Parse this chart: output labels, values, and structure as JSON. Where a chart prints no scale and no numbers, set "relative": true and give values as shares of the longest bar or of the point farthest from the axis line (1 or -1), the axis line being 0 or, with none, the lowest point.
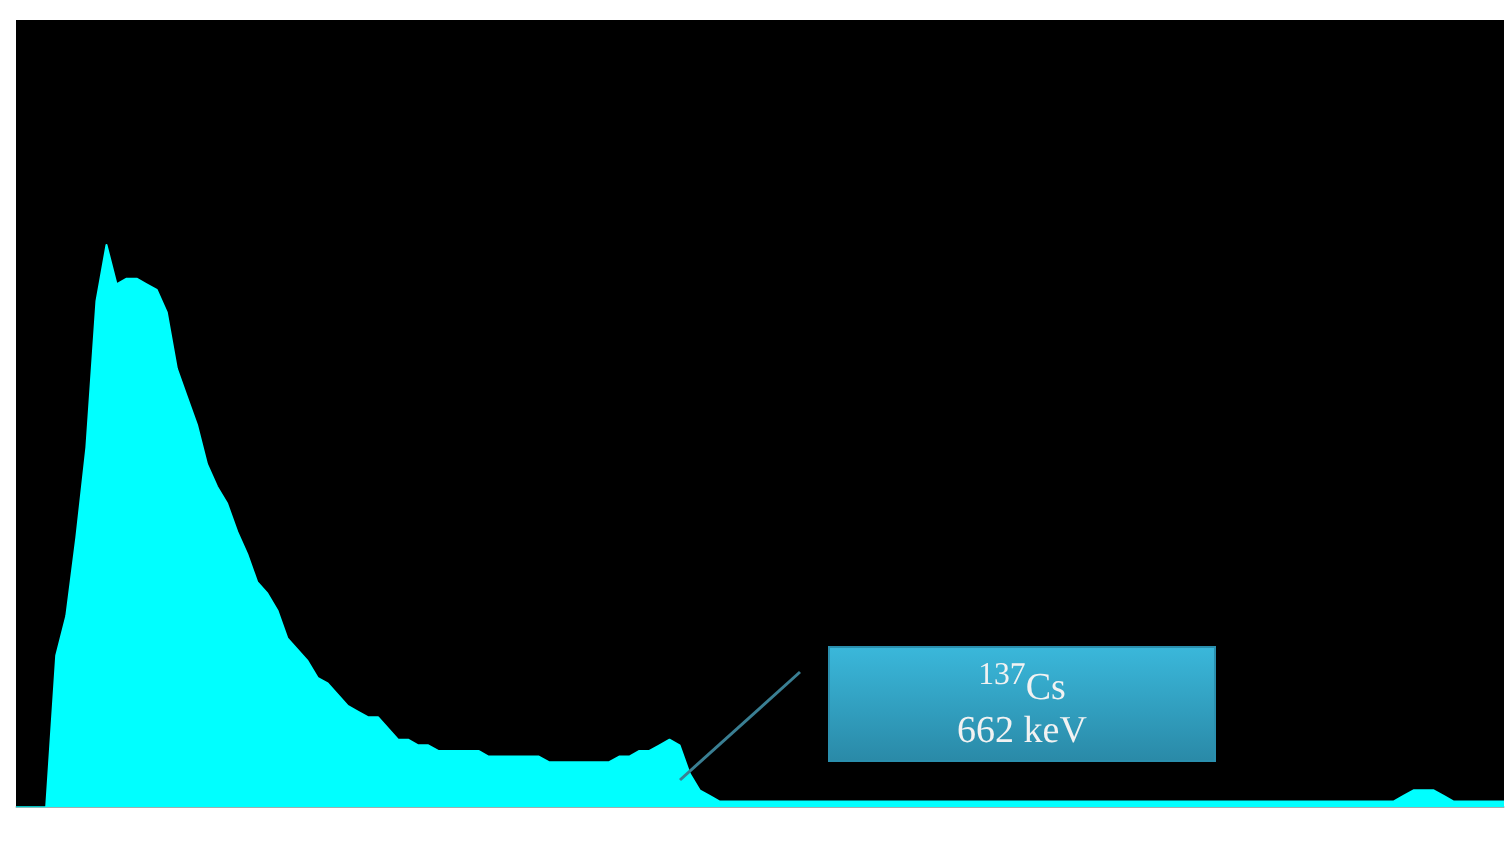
{
  "chart_data": {
    "type": "area",
    "relative": true,
    "color": "#00ffff",
    "categories": [
      null,
      null,
      null,
      null,
      null,
      null,
      null,
      null,
      null,
      null,
      null,
      null,
      null,
      null,
      null,
      null,
      null,
      null,
      null,
      null,
      null,
      null,
      null,
      null,
      null,
      null,
      null,
      null,
      null,
      null,
      null,
      null,
      null,
      null,
      null,
      null,
      null,
      null,
      null,
      null,
      null,
      null,
      null,
      null,
      null,
      null,
      null,
      null,
      null,
      null,
      null,
      null,
      null,
      null,
      null,
      null,
      null,
      null,
      null,
      null,
      null,
      null,
      null,
      null,
      null,
      null,
      null,
      null,
      null,
      null,
      null,
      null,
      null,
      null,
      null,
      null,
      null,
      null,
      null,
      null,
      null,
      null,
      null,
      null,
      null,
      null,
      null,
      null,
      null,
      null,
      null,
      null,
      null,
      null,
      null,
      null,
      null,
      null,
      null,
      null,
      null,
      null,
      null,
      null,
      null,
      null,
      null,
      null,
      null,
      null,
      null,
      null,
      null,
      null,
      null,
      null,
      null,
      null,
      null,
      null,
      null,
      null,
      null,
      null,
      null,
      null,
      null,
      null,
      null,
      null,
      null,
      null,
      null,
      null,
      null,
      null,
      null,
      null,
      null,
      null,
      null,
      null,
      null,
      null,
      null,
      null,
      null,
      null,
      null
    ],
    "values": [
      0,
      0,
      0,
      0,
      0.27,
      0.34,
      0.48,
      0.64,
      0.9,
      1,
      0.93,
      0.94,
      0.94,
      0.93,
      0.92,
      0.88,
      0.78,
      0.73,
      0.68,
      0.61,
      0.57,
      0.54,
      0.49,
      0.45,
      0.4,
      0.38,
      0.35,
      0.3,
      0.28,
      0.26,
      0.23,
      0.22,
      0.2,
      0.18,
      0.17,
      0.16,
      0.16,
      0.14,
      0.12,
      0.12,
      0.11,
      0.11,
      0.1,
      0.1,
      0.1,
      0.1,
      0.1,
      0.09,
      0.09,
      0.09,
      0.09,
      0.09,
      0.09,
      0.08,
      0.08,
      0.08,
      0.08,
      0.08,
      0.08,
      0.08,
      0.09,
      0.09,
      0.1,
      0.1,
      0.11,
      0.12,
      0.11,
      0.06,
      0.03,
      0.02,
      0.01,
      0.01,
      0.01,
      0.01,
      0.01,
      0.01,
      0.01,
      0.01,
      0.01,
      0.01,
      0.01,
      0.01,
      0.01,
      0.01,
      0.01,
      0.01,
      0.01,
      0.01,
      0.01,
      0.01,
      0.01,
      0.01,
      0.01,
      0.01,
      0.01,
      0.01,
      0.01,
      0.01,
      0.01,
      0.01,
      0.01,
      0.01,
      0.01,
      0.01,
      0.01,
      0.01,
      0.01,
      0.01,
      0.01,
      0.01,
      0.01,
      0.01,
      0.01,
      0.01,
      0.01,
      0.01,
      0.01,
      0.01,
      0.01,
      0.01,
      0.01,
      0.01,
      0.01,
      0.01,
      0.01,
      0.01,
      0.01,
      0.01,
      0.01,
      0.01,
      0.01,
      0.01,
      0.01,
      0.01,
      0.01,
      0.01,
      0.01,
      0.01,
      0.02,
      0.03,
      0.03,
      0.03,
      0.02,
      0.01,
      0.01,
      0.01,
      0.01,
      0.01,
      0.01
    ],
    "annotations": [
      "$^{137}$Cs",
      "662 keV"
    ]
  }
}
